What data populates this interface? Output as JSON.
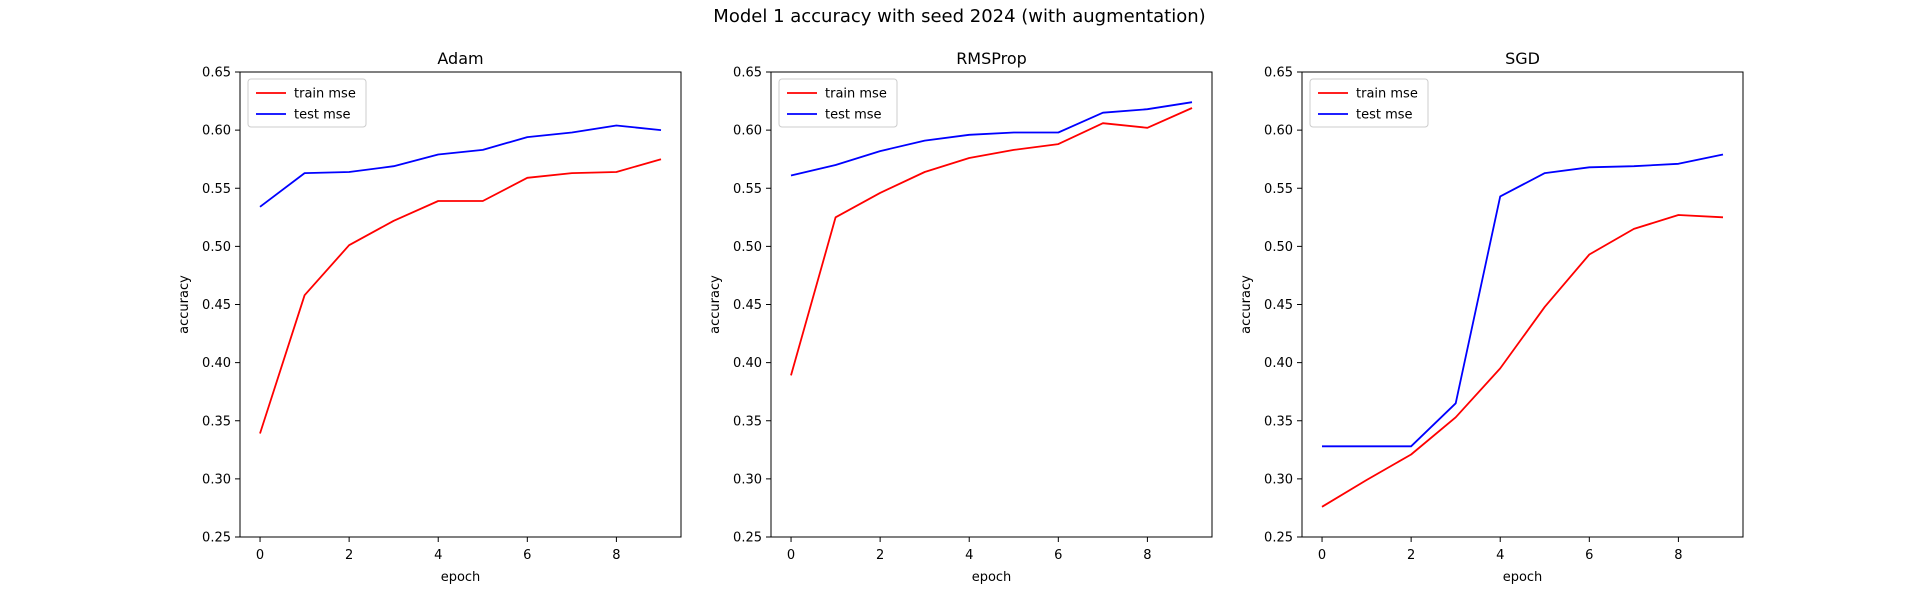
{
  "figure_title": "Model 1 accuracy with seed 2024 (with augmentation)",
  "colors": {
    "train": "#ff0000",
    "test": "#0000ff",
    "axis": "#000000",
    "legend_border": "#cccccc"
  },
  "chart_data": [
    {
      "type": "line",
      "title": "Adam",
      "xlabel": "epoch",
      "ylabel": "accuracy",
      "x": [
        0,
        1,
        2,
        3,
        4,
        5,
        6,
        7,
        8,
        9
      ],
      "xlim": [
        -0.45,
        9.45
      ],
      "ylim": [
        0.25,
        0.65
      ],
      "xticks": [
        0,
        2,
        4,
        6,
        8
      ],
      "yticks": [
        0.25,
        0.3,
        0.35,
        0.4,
        0.45,
        0.5,
        0.55,
        0.6,
        0.65
      ],
      "ytick_labels": [
        "0.25",
        "0.30",
        "0.35",
        "0.40",
        "0.45",
        "0.50",
        "0.55",
        "0.60",
        "0.65"
      ],
      "grid": false,
      "legend": "top-left",
      "series": [
        {
          "name": "train mse",
          "color": "#ff0000",
          "values": [
            0.339,
            0.458,
            0.501,
            0.522,
            0.539,
            0.539,
            0.559,
            0.563,
            0.564,
            0.575
          ]
        },
        {
          "name": "test mse",
          "color": "#0000ff",
          "values": [
            0.534,
            0.563,
            0.564,
            0.569,
            0.579,
            0.583,
            0.594,
            0.598,
            0.604,
            0.6
          ]
        }
      ]
    },
    {
      "type": "line",
      "title": "RMSProp",
      "xlabel": "epoch",
      "ylabel": "accuracy",
      "x": [
        0,
        1,
        2,
        3,
        4,
        5,
        6,
        7,
        8,
        9
      ],
      "xlim": [
        -0.45,
        9.45
      ],
      "ylim": [
        0.25,
        0.65
      ],
      "xticks": [
        0,
        2,
        4,
        6,
        8
      ],
      "yticks": [
        0.25,
        0.3,
        0.35,
        0.4,
        0.45,
        0.5,
        0.55,
        0.6,
        0.65
      ],
      "ytick_labels": [
        "0.25",
        "0.30",
        "0.35",
        "0.40",
        "0.45",
        "0.50",
        "0.55",
        "0.60",
        "0.65"
      ],
      "grid": false,
      "legend": "top-left",
      "series": [
        {
          "name": "train mse",
          "color": "#ff0000",
          "values": [
            0.389,
            0.525,
            0.546,
            0.564,
            0.576,
            0.583,
            0.588,
            0.606,
            0.602,
            0.619
          ]
        },
        {
          "name": "test mse",
          "color": "#0000ff",
          "values": [
            0.561,
            0.57,
            0.582,
            0.591,
            0.596,
            0.598,
            0.598,
            0.615,
            0.618,
            0.624
          ]
        }
      ]
    },
    {
      "type": "line",
      "title": "SGD",
      "xlabel": "epoch",
      "ylabel": "accuracy",
      "x": [
        0,
        1,
        2,
        3,
        4,
        5,
        6,
        7,
        8,
        9
      ],
      "xlim": [
        -0.45,
        9.45
      ],
      "ylim": [
        0.25,
        0.65
      ],
      "xticks": [
        0,
        2,
        4,
        6,
        8
      ],
      "yticks": [
        0.25,
        0.3,
        0.35,
        0.4,
        0.45,
        0.5,
        0.55,
        0.6,
        0.65
      ],
      "ytick_labels": [
        "0.25",
        "0.30",
        "0.35",
        "0.40",
        "0.45",
        "0.50",
        "0.55",
        "0.60",
        "0.65"
      ],
      "grid": false,
      "legend": "top-left",
      "series": [
        {
          "name": "train mse",
          "color": "#ff0000",
          "values": [
            0.276,
            0.299,
            0.321,
            0.353,
            0.395,
            0.448,
            0.493,
            0.515,
            0.527,
            0.525
          ]
        },
        {
          "name": "test mse",
          "color": "#0000ff",
          "values": [
            0.328,
            0.328,
            0.328,
            0.365,
            0.543,
            0.563,
            0.568,
            0.569,
            0.571,
            0.579
          ]
        }
      ]
    }
  ]
}
